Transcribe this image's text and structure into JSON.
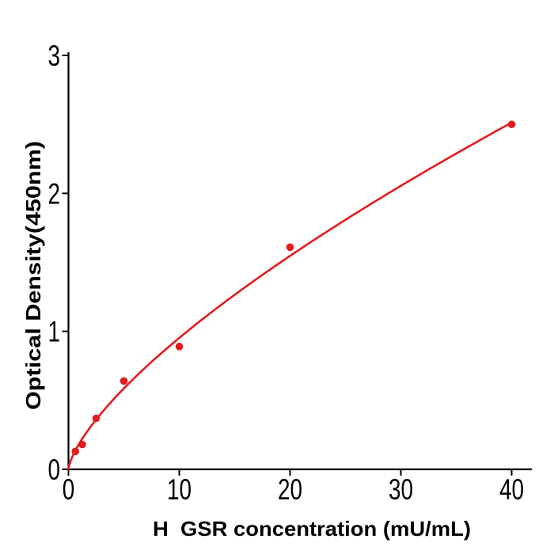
{
  "figure": {
    "background_color": "#ffffff"
  },
  "chart_data": {
    "type": "scatter",
    "title": "",
    "xlabel": "H  GSR concentration (mU/mL)",
    "ylabel": "Optical Density(450nm)",
    "x": [
      0.625,
      1.25,
      2.5,
      5,
      10,
      20,
      40
    ],
    "y": [
      0.13,
      0.18,
      0.37,
      0.64,
      0.89,
      1.61,
      2.5
    ],
    "series_name": "standard-curve-points",
    "fit_curve": {
      "type": "power",
      "equation": "OD = 0.19 * x^0.70",
      "a": 0.19,
      "p": 0.7,
      "x_range": [
        0,
        40
      ]
    },
    "x_ticks": [
      0,
      10,
      20,
      30,
      40
    ],
    "y_ticks": [
      0,
      1,
      2,
      3
    ],
    "xlim": [
      0,
      41.8
    ],
    "ylim": [
      0,
      3.03
    ],
    "grid": false,
    "legend": null,
    "point_color": "#e41a1c",
    "line_color": "#e41a1c",
    "axis_color": "#000000"
  }
}
